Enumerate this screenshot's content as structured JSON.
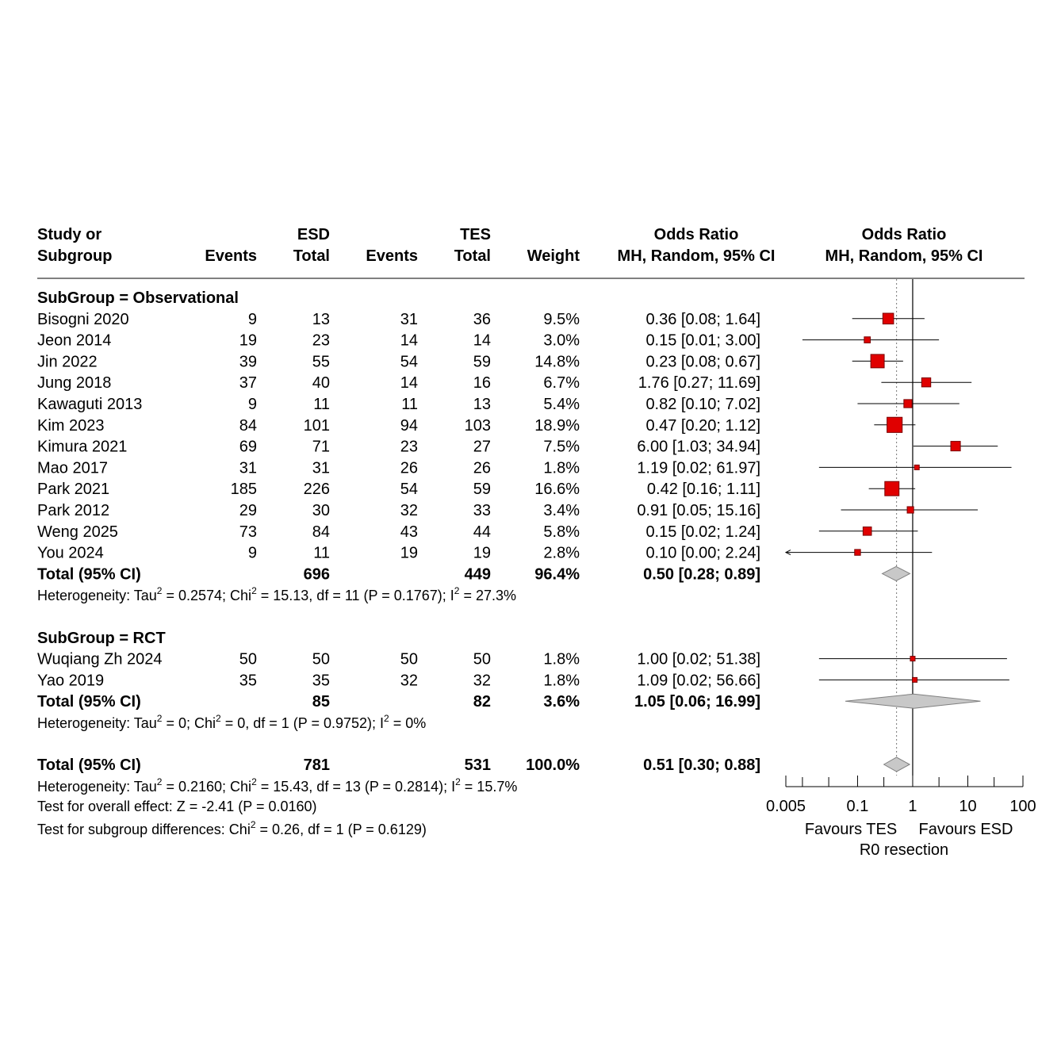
{
  "header": {
    "study_line1": "Study or",
    "study_line2": "Subgroup",
    "esd_group": "ESD",
    "tes_group": "TES",
    "events": "Events",
    "total": "Total",
    "weight": "Weight",
    "or_title": "Odds Ratio",
    "or_method": "MH, Random, 95% CI"
  },
  "subgroups": [
    {
      "label": "SubGroup = Observational",
      "studies": [
        {
          "study": "Bisogni 2020",
          "esd_events": "9",
          "esd_total": "13",
          "tes_events": "31",
          "tes_total": "36",
          "weight": "9.5%",
          "or": 0.36,
          "lo": 0.08,
          "hi": 1.64,
          "ci_text": "0.36 [0.08;  1.64]"
        },
        {
          "study": "Jeon 2014",
          "esd_events": "19",
          "esd_total": "23",
          "tes_events": "14",
          "tes_total": "14",
          "weight": "3.0%",
          "or": 0.15,
          "lo": 0.01,
          "hi": 3.0,
          "ci_text": "0.15 [0.01;  3.00]"
        },
        {
          "study": "Jin 2022",
          "esd_events": "39",
          "esd_total": "55",
          "tes_events": "54",
          "tes_total": "59",
          "weight": "14.8%",
          "or": 0.23,
          "lo": 0.08,
          "hi": 0.67,
          "ci_text": "0.23 [0.08;  0.67]"
        },
        {
          "study": "Jung 2018",
          "esd_events": "37",
          "esd_total": "40",
          "tes_events": "14",
          "tes_total": "16",
          "weight": "6.7%",
          "or": 1.76,
          "lo": 0.27,
          "hi": 11.69,
          "ci_text": "1.76 [0.27; 11.69]"
        },
        {
          "study": "Kawaguti 2013",
          "esd_events": "9",
          "esd_total": "11",
          "tes_events": "11",
          "tes_total": "13",
          "weight": "5.4%",
          "or": 0.82,
          "lo": 0.1,
          "hi": 7.02,
          "ci_text": "0.82 [0.10;  7.02]"
        },
        {
          "study": "Kim 2023",
          "esd_events": "84",
          "esd_total": "101",
          "tes_events": "94",
          "tes_total": "103",
          "weight": "18.9%",
          "or": 0.47,
          "lo": 0.2,
          "hi": 1.12,
          "ci_text": "0.47 [0.20;  1.12]"
        },
        {
          "study": "Kimura 2021",
          "esd_events": "69",
          "esd_total": "71",
          "tes_events": "23",
          "tes_total": "27",
          "weight": "7.5%",
          "or": 6.0,
          "lo": 1.03,
          "hi": 34.94,
          "ci_text": "6.00 [1.03; 34.94]"
        },
        {
          "study": "Mao 2017",
          "esd_events": "31",
          "esd_total": "31",
          "tes_events": "26",
          "tes_total": "26",
          "weight": "1.8%",
          "or": 1.19,
          "lo": 0.02,
          "hi": 61.97,
          "ci_text": "1.19 [0.02; 61.97]"
        },
        {
          "study": "Park 2021",
          "esd_events": "185",
          "esd_total": "226",
          "tes_events": "54",
          "tes_total": "59",
          "weight": "16.6%",
          "or": 0.42,
          "lo": 0.16,
          "hi": 1.11,
          "ci_text": "0.42 [0.16;  1.11]"
        },
        {
          "study": "Park 2012",
          "esd_events": "29",
          "esd_total": "30",
          "tes_events": "32",
          "tes_total": "33",
          "weight": "3.4%",
          "or": 0.91,
          "lo": 0.05,
          "hi": 15.16,
          "ci_text": "0.91 [0.05; 15.16]"
        },
        {
          "study": "Weng 2025",
          "esd_events": "73",
          "esd_total": "84",
          "tes_events": "43",
          "tes_total": "44",
          "weight": "5.8%",
          "or": 0.15,
          "lo": 0.02,
          "hi": 1.24,
          "ci_text": "0.15 [0.02;  1.24]"
        },
        {
          "study": "You 2024",
          "esd_events": "9",
          "esd_total": "11",
          "tes_events": "19",
          "tes_total": "19",
          "weight": "2.8%",
          "or": 0.1,
          "lo": 0.0,
          "hi": 2.24,
          "ci_text": "0.10 [0.00;  2.24]"
        }
      ],
      "total": {
        "label": "Total (95% CI)",
        "esd_total": "696",
        "tes_total": "449",
        "weight": "96.4%",
        "or": 0.5,
        "lo": 0.28,
        "hi": 0.89,
        "ci_text": "0.50 [0.28;  0.89]"
      },
      "heterogeneity": {
        "t1": "Heterogeneity: Tau",
        "t2": " = 0.2574; Chi",
        "t3": " = 15.13, df = 11 (P = 0.1767); I",
        "t4": " = 27.3%",
        "sup": "2"
      }
    },
    {
      "label": "SubGroup = RCT",
      "studies": [
        {
          "study": "Wuqiang Zh 2024",
          "esd_events": "50",
          "esd_total": "50",
          "tes_events": "50",
          "tes_total": "50",
          "weight": "1.8%",
          "or": 1.0,
          "lo": 0.02,
          "hi": 51.38,
          "ci_text": "1.00 [0.02; 51.38]"
        },
        {
          "study": "Yao 2019",
          "esd_events": "35",
          "esd_total": "35",
          "tes_events": "32",
          "tes_total": "32",
          "weight": "1.8%",
          "or": 1.09,
          "lo": 0.02,
          "hi": 56.66,
          "ci_text": "1.09 [0.02; 56.66]"
        }
      ],
      "total": {
        "label": "Total (95% CI)",
        "esd_total": "85",
        "tes_total": "82",
        "weight": "3.6%",
        "or": 1.05,
        "lo": 0.06,
        "hi": 16.99,
        "ci_text": "1.05 [0.06; 16.99]"
      },
      "heterogeneity": {
        "t1": "Heterogeneity: Tau",
        "t2": " = 0; Chi",
        "t3": " = 0, df = 1 (P = 0.9752); I",
        "t4": " = 0%",
        "sup": "2"
      }
    }
  ],
  "overall": {
    "total": {
      "label": "Total (95% CI)",
      "esd_total": "781",
      "tes_total": "531",
      "weight": "100.0%",
      "or": 0.51,
      "lo": 0.3,
      "hi": 0.88,
      "ci_text": "0.51 [0.30;  0.88]"
    },
    "heterogeneity": {
      "t1": "Heterogeneity: Tau",
      "t2": " = 0.2160; Chi",
      "t3": " = 15.43, df = 13 (P = 0.2814); I",
      "t4": " = 15.7%",
      "sup": "2"
    },
    "overall_effect": "Test for overall effect: Z = -2.41 (P = 0.0160)",
    "subgroup_diff": {
      "t1": "Test for subgroup differences: Chi",
      "t2": " = 0.26, df = 1 (P = 0.6129)",
      "sup": "2"
    }
  },
  "chart_data": {
    "type": "forest",
    "x_scale": "log",
    "xlim": [
      0.005,
      100
    ],
    "x_ticks": [
      0.005,
      0.1,
      1,
      10,
      100
    ],
    "x_tick_labels": [
      "0.005",
      "0.1",
      "1",
      "10",
      "100"
    ],
    "reference_line": 1,
    "pooled_line": 0.51,
    "favours_left": "Favours TES",
    "favours_right": "Favours ESD",
    "xlabel": "R0 resection",
    "colors": {
      "square": "#e00000",
      "square_border": "#7a0000",
      "diamond": "#c8c8c8",
      "diamond_border": "#808080",
      "ci_line": "#000000"
    }
  }
}
